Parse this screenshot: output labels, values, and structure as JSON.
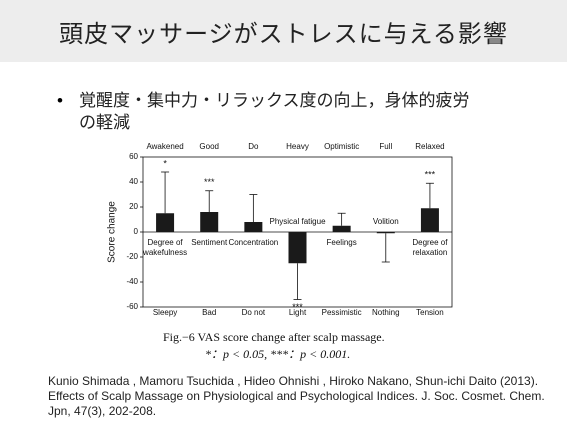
{
  "slide": {
    "title": "頭皮マッサージがストレスに与える影響",
    "bullet": "覚醒度・集中力・リラックス度の向上，身体的疲労の軽減",
    "caption": "Fig.−6   VAS score change after scalp massage.",
    "caption_note": "*：p < 0.05, ***：p < 0.001.",
    "citation": "Kunio Shimada , Mamoru Tsuchida , Hideo Ohnishi , Hiroko Nakano, Shun-ichi Daito (2013). Effects of Scalp Massage on Physiological and Psychological Indices. J. Soc. Cosmet. Chem. Jpn, 47(3), 202-208."
  },
  "chart_data": {
    "type": "bar",
    "y_label": "Score change",
    "categories": [
      "Awakened",
      "Good",
      "Do",
      "Heavy",
      "Optimistic",
      "Full",
      "Relaxed"
    ],
    "bottom_labels": [
      "Sleepy",
      "Bad",
      "Do not",
      "Light",
      "Pessimistic",
      "Nothing",
      "Tension"
    ],
    "inner_labels": [
      [
        "Degree of",
        "wakefulness"
      ],
      [
        "Sentiment"
      ],
      [
        "Concentration"
      ],
      [
        "Physical fatigue"
      ],
      [
        "Feelings"
      ],
      [
        "Volition"
      ],
      [
        "Degree of",
        "relaxation"
      ]
    ],
    "values": [
      15,
      16,
      8,
      -25,
      5,
      -1,
      19
    ],
    "errors": [
      33,
      17,
      22,
      29,
      10,
      23,
      20
    ],
    "significance": [
      "*",
      "***",
      null,
      "***",
      null,
      null,
      "***"
    ],
    "color": "#1a1a1a",
    "ylim": [
      -60,
      60
    ],
    "yticks": [
      -60,
      -40,
      -20,
      0,
      20,
      40,
      60
    ]
  }
}
